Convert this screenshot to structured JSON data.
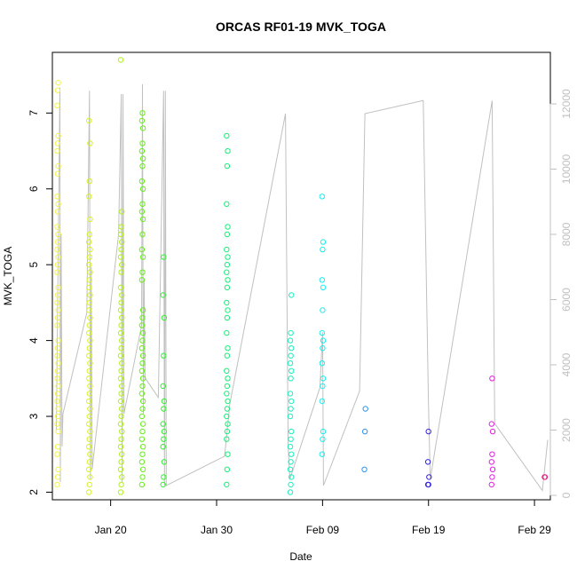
{
  "chart_data": {
    "type": "scatter",
    "title": "ORCAS RF01-19 MVK_TOGA",
    "xlabel": "Date",
    "ylabel": "MVK_TOGA",
    "x_ticks": [
      {
        "date": "2016-01-20",
        "label": "Jan 20"
      },
      {
        "date": "2016-01-30",
        "label": "Jan 30"
      },
      {
        "date": "2016-02-09",
        "label": "Feb 09"
      },
      {
        "date": "2016-02-19",
        "label": "Feb 19"
      },
      {
        "date": "2016-02-29",
        "label": "Feb 29"
      }
    ],
    "xlim": [
      "2016-01-14T12:00",
      "2016-03-01T12:00"
    ],
    "ylim": [
      1.9,
      7.8
    ],
    "y_ticks": [
      "2",
      "3",
      "4",
      "5",
      "6",
      "7"
    ],
    "y2_ticks": [
      "0",
      "2000",
      "4000",
      "6000",
      "8000",
      "10000",
      "12000"
    ],
    "y2lim": [
      0,
      12500
    ],
    "y2_color": "#c0c0c0",
    "grid": false,
    "flights": [
      {
        "date": "2016-01-15",
        "color": "#f2f24a",
        "values": [
          2.1,
          2.2,
          2.3,
          2.5,
          2.6,
          2.8,
          2.9,
          3.0,
          3.1,
          3.2,
          3.3,
          3.4,
          3.5,
          3.6,
          3.7,
          3.8,
          3.9,
          4.0,
          4.2,
          4.3,
          4.4,
          4.5,
          4.6,
          4.7,
          4.9,
          5.0,
          5.1,
          5.2,
          5.3,
          5.4,
          5.5,
          5.7,
          5.8,
          5.9,
          6.2,
          6.3,
          6.5,
          6.6,
          6.7,
          7.1,
          7.3,
          7.4
        ]
      },
      {
        "date": "2016-01-18",
        "color": "#d8f21f",
        "values": [
          2.0,
          2.1,
          2.2,
          2.3,
          2.4,
          2.5,
          2.6,
          2.7,
          2.8,
          2.9,
          3.0,
          3.1,
          3.2,
          3.3,
          3.4,
          3.5,
          3.6,
          3.7,
          3.8,
          3.9,
          4.0,
          4.1,
          4.2,
          4.3,
          4.4,
          4.5,
          4.6,
          4.7,
          4.8,
          4.9,
          5.0,
          5.1,
          5.2,
          5.3,
          5.4,
          5.6,
          5.9,
          6.1,
          6.6,
          6.9
        ]
      },
      {
        "date": "2016-01-21",
        "color": "#b0f01a",
        "values": [
          2.0,
          2.1,
          2.2,
          2.3,
          2.4,
          2.5,
          2.6,
          2.7,
          2.8,
          2.9,
          3.0,
          3.1,
          3.2,
          3.3,
          3.4,
          3.5,
          3.6,
          3.7,
          3.8,
          3.9,
          4.0,
          4.1,
          4.2,
          4.3,
          4.4,
          4.5,
          4.6,
          4.7,
          4.9,
          5.0,
          5.1,
          5.2,
          5.3,
          5.4,
          5.5,
          5.7,
          7.7
        ]
      },
      {
        "date": "2016-01-23",
        "color": "#66ee1a",
        "values": [
          2.1,
          2.2,
          2.3,
          2.4,
          2.5,
          2.6,
          2.7,
          2.8,
          2.9,
          3.0,
          3.1,
          3.2,
          3.3,
          3.4,
          3.5,
          3.6,
          3.7,
          3.8,
          3.9,
          4.0,
          4.1,
          4.2,
          4.3,
          4.4,
          4.8,
          4.9,
          5.1,
          5.2,
          5.4,
          5.6,
          5.7,
          5.8,
          6.0,
          6.1,
          6.3,
          6.4,
          6.5,
          6.6,
          6.8,
          6.9,
          7.0
        ]
      },
      {
        "date": "2016-01-25",
        "color": "#33ee33",
        "values": [
          2.1,
          2.2,
          2.4,
          2.6,
          2.7,
          2.8,
          2.9,
          3.1,
          3.2,
          3.4,
          3.8,
          4.3,
          4.6,
          5.1
        ]
      },
      {
        "date": "2016-01-31",
        "color": "#1aee7a",
        "values": [
          2.1,
          2.3,
          2.5,
          2.7,
          2.8,
          2.9,
          3.0,
          3.1,
          3.2,
          3.3,
          3.4,
          3.5,
          3.6,
          3.8,
          3.9,
          4.1,
          4.3,
          4.4,
          4.5,
          4.7,
          4.8,
          4.9,
          5.0,
          5.1,
          5.2,
          5.4,
          5.5,
          5.8,
          6.3,
          6.5,
          6.7
        ]
      },
      {
        "date": "2016-02-06",
        "color": "#1aeebf",
        "values": [
          2.0,
          2.1,
          2.2,
          2.3,
          2.4,
          2.5,
          2.6,
          2.7,
          2.8,
          3.0,
          3.1,
          3.2,
          3.3,
          3.5,
          3.6,
          3.7,
          3.8,
          3.9,
          4.0,
          4.1,
          4.6
        ]
      },
      {
        "date": "2016-02-09",
        "color": "#1aeeee",
        "values": [
          2.5,
          2.7,
          2.8,
          3.2,
          3.4,
          3.5,
          3.7,
          3.9,
          4.0,
          4.1,
          4.4,
          4.7,
          4.8,
          5.2,
          5.3,
          5.9
        ]
      },
      {
        "date": "2016-02-13",
        "color": "#2f95ee",
        "values": [
          2.3,
          2.8,
          3.1
        ]
      },
      {
        "date": "2016-02-19",
        "color": "#3322dd",
        "values": [
          2.1,
          2.1,
          2.2,
          2.4,
          2.8
        ]
      },
      {
        "date": "2016-02-25",
        "color": "#dd22dd",
        "values": [
          2.1,
          2.2,
          2.3,
          2.4,
          2.5,
          2.8,
          2.9,
          3.5
        ]
      },
      {
        "date": "2016-03-01",
        "color": "#ee2288",
        "values": [
          2.2,
          2.2
        ]
      }
    ],
    "altitude_line": {
      "color": "#c0c0c0",
      "points": [
        [
          "2016-01-14T21:00",
          2000
        ],
        [
          "2016-01-15T05:00",
          12500
        ],
        [
          "2016-01-15T06:00",
          400
        ],
        [
          "2016-01-15T08:00",
          8000
        ],
        [
          "2016-01-15T10:00",
          1500
        ],
        [
          "2016-01-15T12:00",
          2500
        ],
        [
          "2016-01-17T18:00",
          5600
        ],
        [
          "2016-01-18T00:00",
          12400
        ],
        [
          "2016-01-18T02:00",
          500
        ],
        [
          "2016-01-18T04:00",
          7000
        ],
        [
          "2016-01-18T06:00",
          800
        ],
        [
          "2016-01-20T18:00",
          8000
        ],
        [
          "2016-01-21T00:00",
          12300
        ],
        [
          "2016-01-21T02:00",
          400
        ],
        [
          "2016-01-21T04:00",
          12300
        ],
        [
          "2016-01-21T06:00",
          2500
        ],
        [
          "2016-01-22T22:00",
          5200
        ],
        [
          "2016-01-23T00:00",
          12600
        ],
        [
          "2016-01-23T02:00",
          2500
        ],
        [
          "2016-01-23T04:00",
          6600
        ],
        [
          "2016-01-23T06:00",
          3600
        ],
        [
          "2016-01-24T12:00",
          3000
        ],
        [
          "2016-01-25T00:00",
          12400
        ],
        [
          "2016-01-25T02:00",
          300
        ],
        [
          "2016-01-25T04:00",
          12400
        ],
        [
          "2016-01-25T06:00",
          300
        ],
        [
          "2016-01-30T18:00",
          1200
        ],
        [
          "2016-01-31T06:00",
          2800
        ],
        [
          "2016-02-05T12:00",
          11700
        ],
        [
          "2016-02-05T18:00",
          1500
        ],
        [
          "2016-02-05T22:00",
          500
        ],
        [
          "2016-02-08T18:00",
          3300
        ],
        [
          "2016-02-09T00:00",
          5000
        ],
        [
          "2016-02-09T02:00",
          300
        ],
        [
          "2016-02-12T12:00",
          3200
        ],
        [
          "2016-02-13T00:00",
          11700
        ],
        [
          "2016-02-18T12:00",
          12100
        ],
        [
          "2016-02-19T00:00",
          2800
        ],
        [
          "2016-02-19T04:00",
          500
        ],
        [
          "2016-02-25T00:00",
          12100
        ],
        [
          "2016-02-25T06:00",
          2200
        ],
        [
          "2016-02-29T18:00",
          150
        ],
        [
          "2016-03-01T06:00",
          1700
        ]
      ]
    }
  }
}
